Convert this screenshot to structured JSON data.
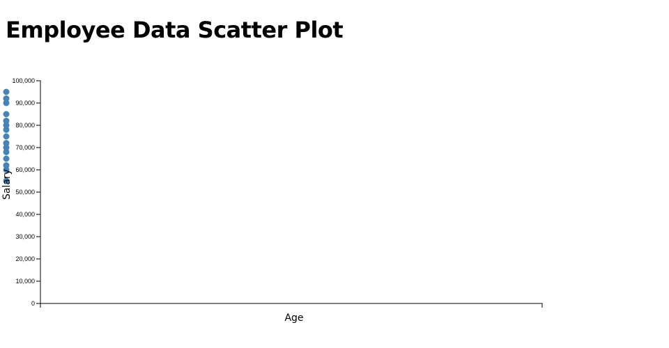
{
  "title": "Employee Data Scatter Plot",
  "chart_data": {
    "type": "scatter",
    "title": "Employee Data Scatter Plot",
    "xlabel": "Age",
    "ylabel": "Salary",
    "ylim": [
      0,
      100000
    ],
    "y_ticks": [
      "0",
      "10,000",
      "20,000",
      "30,000",
      "40,000",
      "50,000",
      "60,000",
      "70,000",
      "80,000",
      "90,000",
      "100,000"
    ],
    "x_ticks": [],
    "grid": false,
    "point_color": "#4682b4",
    "note_points_outside_plot": true,
    "y": [
      95000,
      92000,
      90000,
      85000,
      82000,
      80000,
      78000,
      75000,
      72000,
      70000,
      68000,
      65000,
      62000,
      60000,
      55000
    ]
  }
}
